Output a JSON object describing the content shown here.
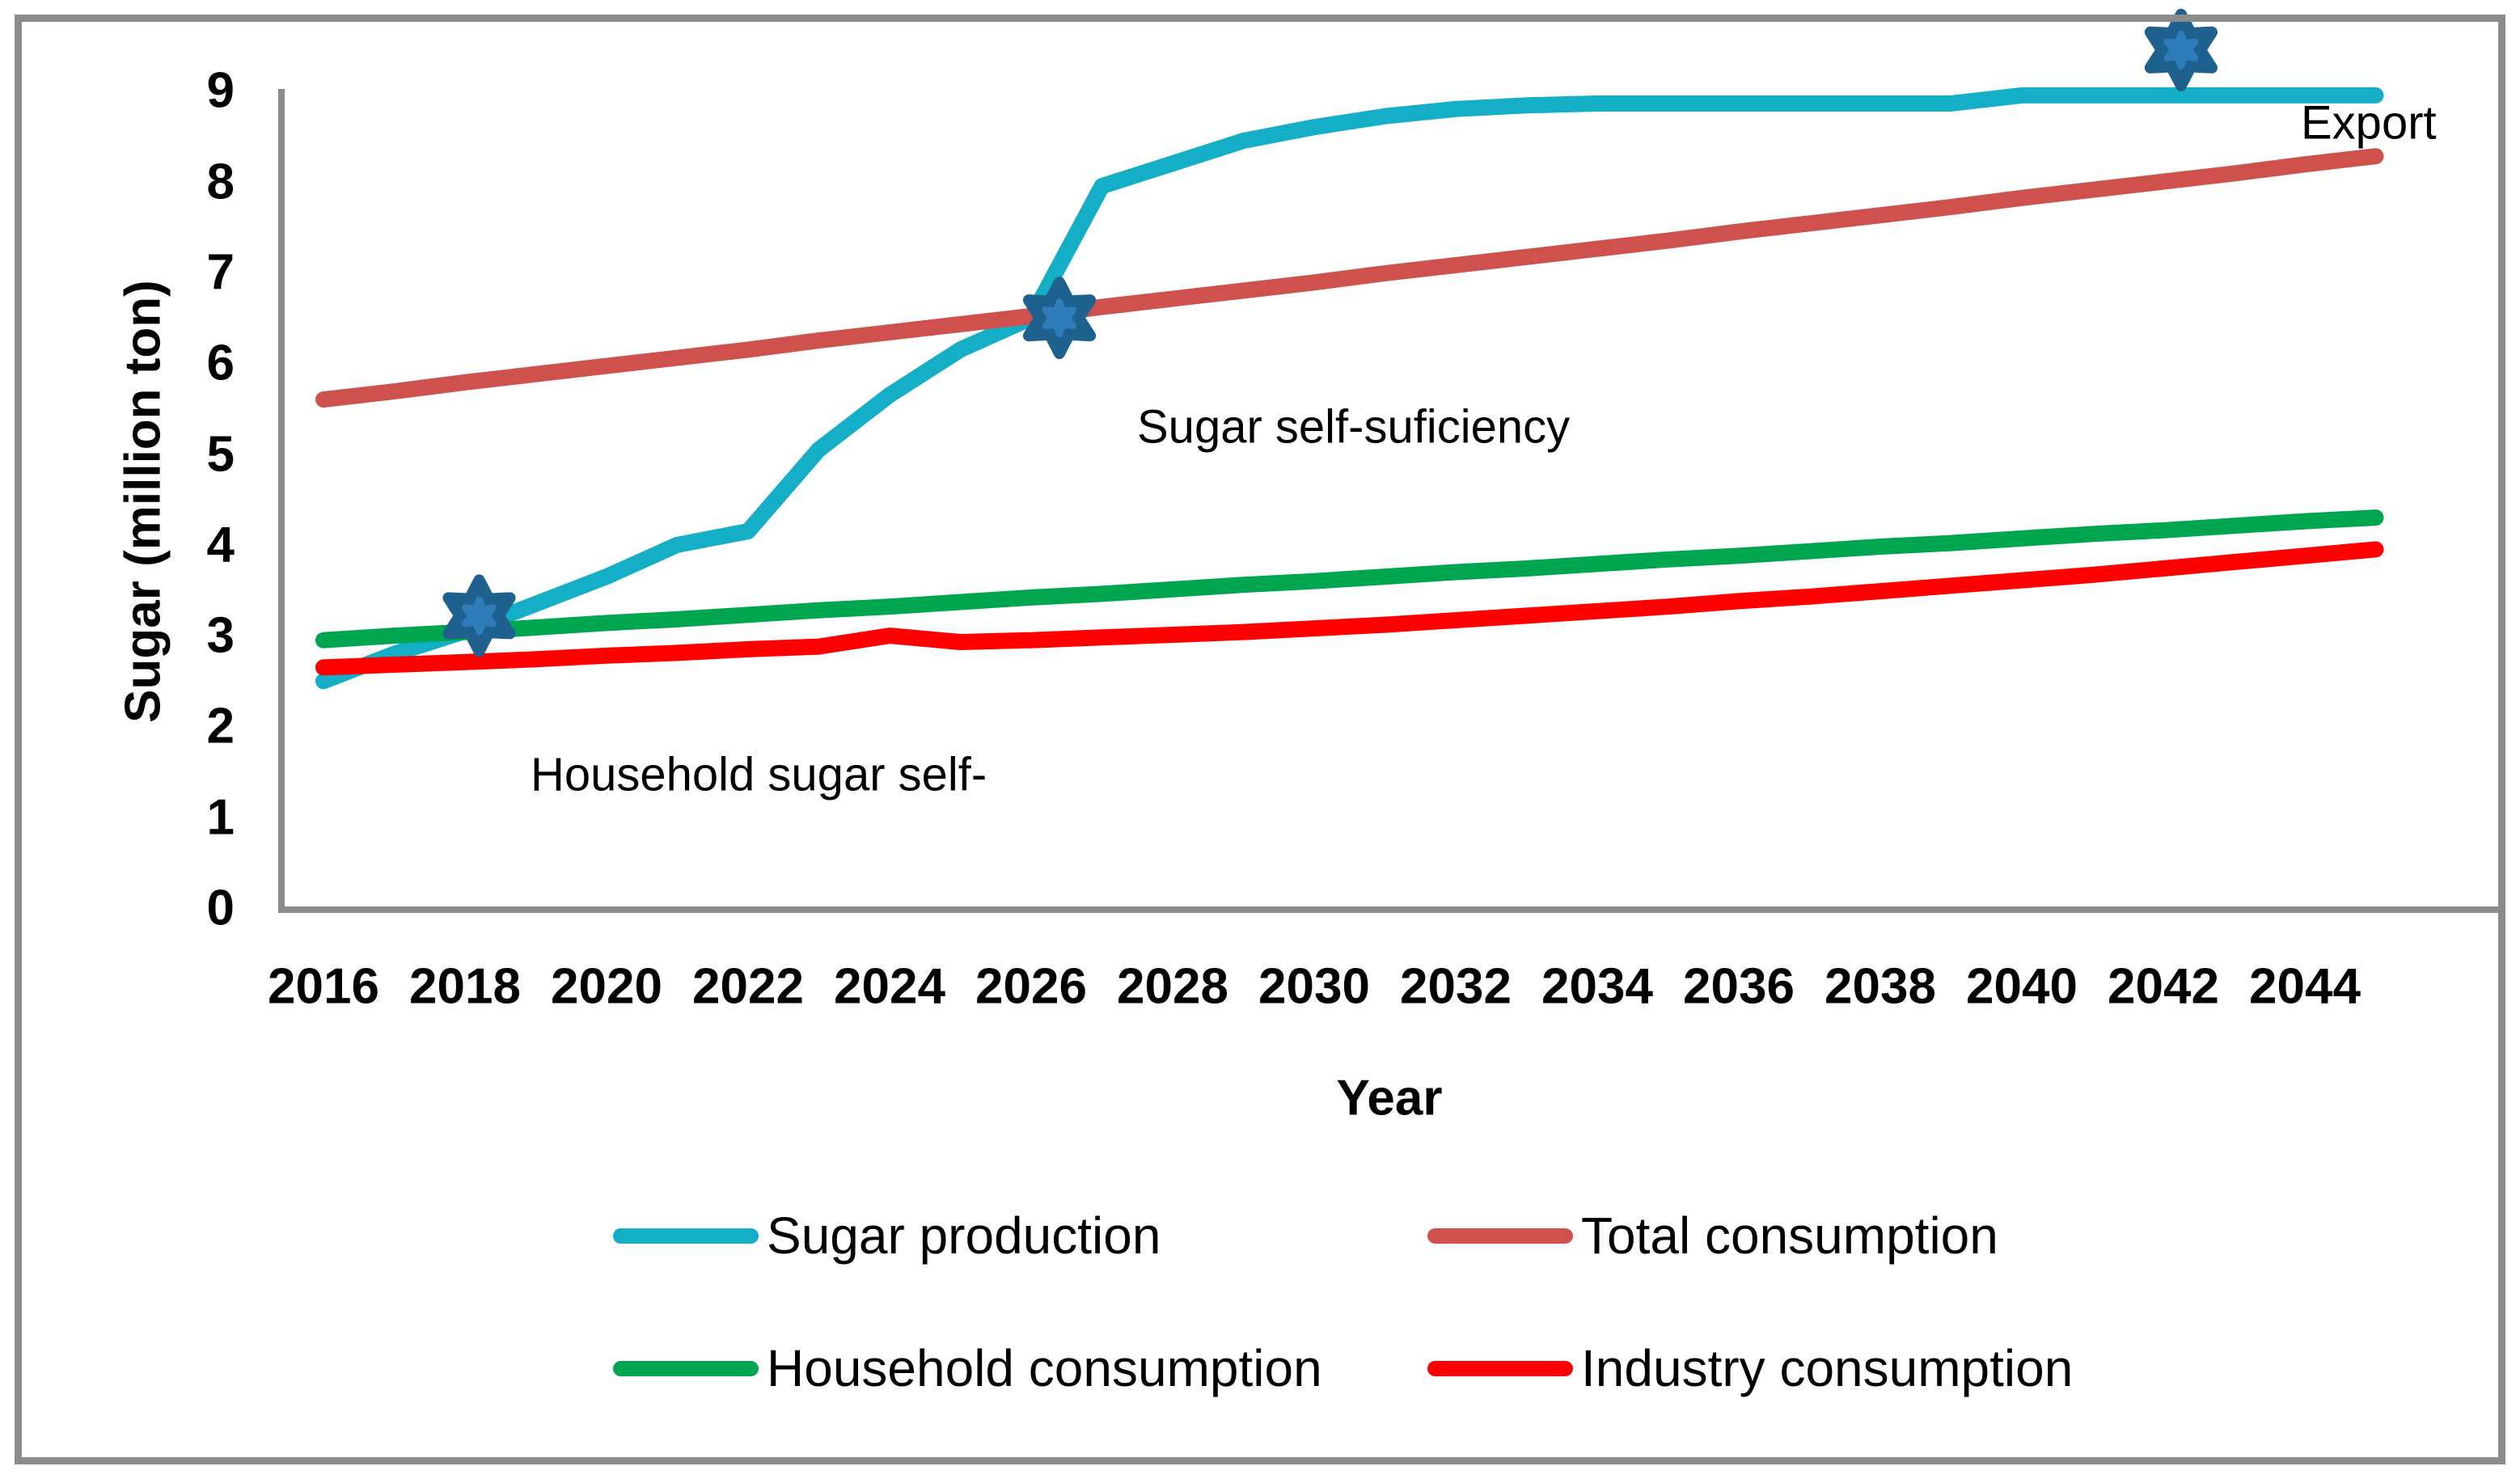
{
  "axes": {
    "y": {
      "title": "Sugar (million ton)",
      "ticks": [
        "0",
        "1",
        "2",
        "3",
        "4",
        "5",
        "6",
        "7",
        "8",
        "9"
      ]
    },
    "x": {
      "title": "Year",
      "ticks": [
        "2016",
        "2018",
        "2020",
        "2022",
        "2024",
        "2026",
        "2028",
        "2030",
        "2032",
        "2034",
        "2036",
        "2038",
        "2040",
        "2042",
        "2044"
      ]
    }
  },
  "annotations": {
    "export": "Export",
    "self_sufficiency": "Sugar self-suficiency",
    "household_self": "Household sugar self-"
  },
  "legend": {
    "items": [
      {
        "label": "Sugar production",
        "color": "#14AEC6"
      },
      {
        "label": "Total consumption",
        "color": "#CF514E"
      },
      {
        "label": "Household consumption",
        "color": "#00A64F"
      },
      {
        "label": "Industry consumption",
        "color": "#FF0000"
      }
    ]
  },
  "frame_color": "#8C8C8C",
  "axis_color": "#8C8C8C",
  "chart_data": {
    "type": "line",
    "title": "",
    "xlabel": "Year",
    "ylabel": "Sugar (million ton)",
    "xlim": [
      2016,
      2045
    ],
    "ylim": [
      0,
      9
    ],
    "x_tick_step": 2,
    "grid": false,
    "legend_position": "bottom",
    "x": [
      2016,
      2017,
      2018,
      2019,
      2020,
      2021,
      2022,
      2023,
      2024,
      2025,
      2026,
      2027,
      2028,
      2029,
      2030,
      2031,
      2032,
      2033,
      2034,
      2035,
      2036,
      2037,
      2038,
      2039,
      2040,
      2041,
      2042,
      2043,
      2044,
      2045
    ],
    "series": [
      {
        "name": "Sugar production",
        "color": "#14AEC6",
        "values": [
          2.5,
          2.8,
          3.05,
          3.35,
          3.65,
          4.0,
          4.15,
          5.05,
          5.65,
          6.15,
          6.5,
          7.95,
          8.2,
          8.45,
          8.6,
          8.72,
          8.8,
          8.84,
          8.86,
          8.86,
          8.86,
          8.86,
          8.86,
          8.86,
          8.95,
          8.95,
          8.95,
          8.95,
          8.95,
          8.95
        ]
      },
      {
        "name": "Total consumption",
        "color": "#CF514E",
        "values": [
          5.6,
          5.69,
          5.79,
          5.88,
          5.97,
          6.06,
          6.15,
          6.25,
          6.34,
          6.43,
          6.52,
          6.62,
          6.71,
          6.8,
          6.89,
          6.99,
          7.08,
          7.17,
          7.26,
          7.35,
          7.45,
          7.54,
          7.63,
          7.72,
          7.82,
          7.91,
          8.0,
          8.09,
          8.19,
          8.28
        ]
      },
      {
        "name": "Household consumption",
        "color": "#00A64F",
        "values": [
          2.95,
          3.0,
          3.04,
          3.09,
          3.14,
          3.18,
          3.23,
          3.28,
          3.32,
          3.37,
          3.42,
          3.46,
          3.51,
          3.56,
          3.6,
          3.65,
          3.7,
          3.74,
          3.79,
          3.84,
          3.88,
          3.93,
          3.98,
          4.02,
          4.07,
          4.12,
          4.16,
          4.21,
          4.26,
          4.3
        ]
      },
      {
        "name": "Industry consumption",
        "color": "#FF0000",
        "values": [
          2.65,
          2.68,
          2.71,
          2.74,
          2.78,
          2.81,
          2.85,
          2.88,
          3.0,
          2.93,
          2.95,
          2.98,
          3.01,
          3.04,
          3.08,
          3.12,
          3.17,
          3.22,
          3.27,
          3.32,
          3.38,
          3.43,
          3.49,
          3.55,
          3.61,
          3.67,
          3.74,
          3.81,
          3.88,
          3.95
        ]
      }
    ],
    "markers": {
      "shape": "six-pointed-star",
      "outer_color": "#1E608E",
      "inner_color": "#2F7CBA",
      "points": [
        {
          "x": 2018.2,
          "y": 3.22
        },
        {
          "x": 2026.4,
          "y": 6.5
        },
        {
          "x": 2042.25,
          "y": 9.45
        }
      ]
    }
  }
}
